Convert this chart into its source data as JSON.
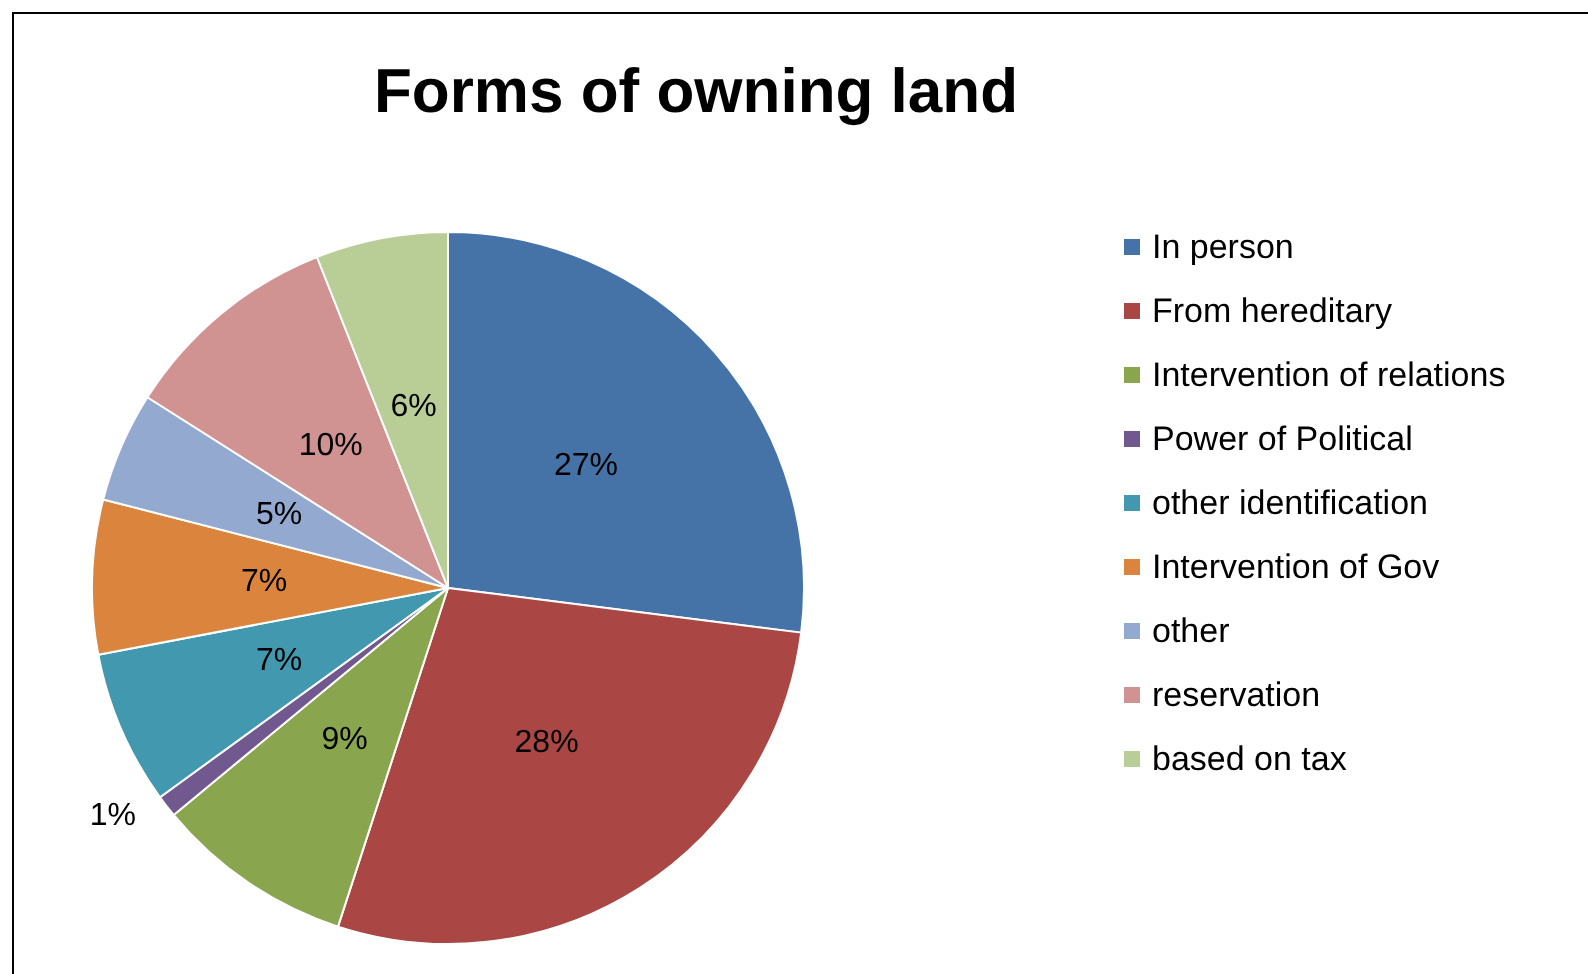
{
  "chart_data": {
    "type": "pie",
    "title": "Forms of owning land",
    "categories": [
      "In person",
      "From hereditary",
      "Intervention of relations",
      "Power of Political",
      "other identification",
      "Intervention of Gov",
      "other",
      "reservation",
      "based on tax"
    ],
    "values": [
      27,
      28,
      9,
      1,
      7,
      7,
      5,
      10,
      6
    ],
    "value_labels": [
      "27%",
      "28%",
      "9%",
      "1%",
      "7%",
      "7%",
      "5%",
      "10%",
      "6%"
    ],
    "colors": [
      "#4572a7",
      "#aa4643",
      "#89a54e",
      "#71588f",
      "#4198af",
      "#db843d",
      "#93a9cf",
      "#d19392",
      "#b9cd96"
    ],
    "legend": "right"
  }
}
